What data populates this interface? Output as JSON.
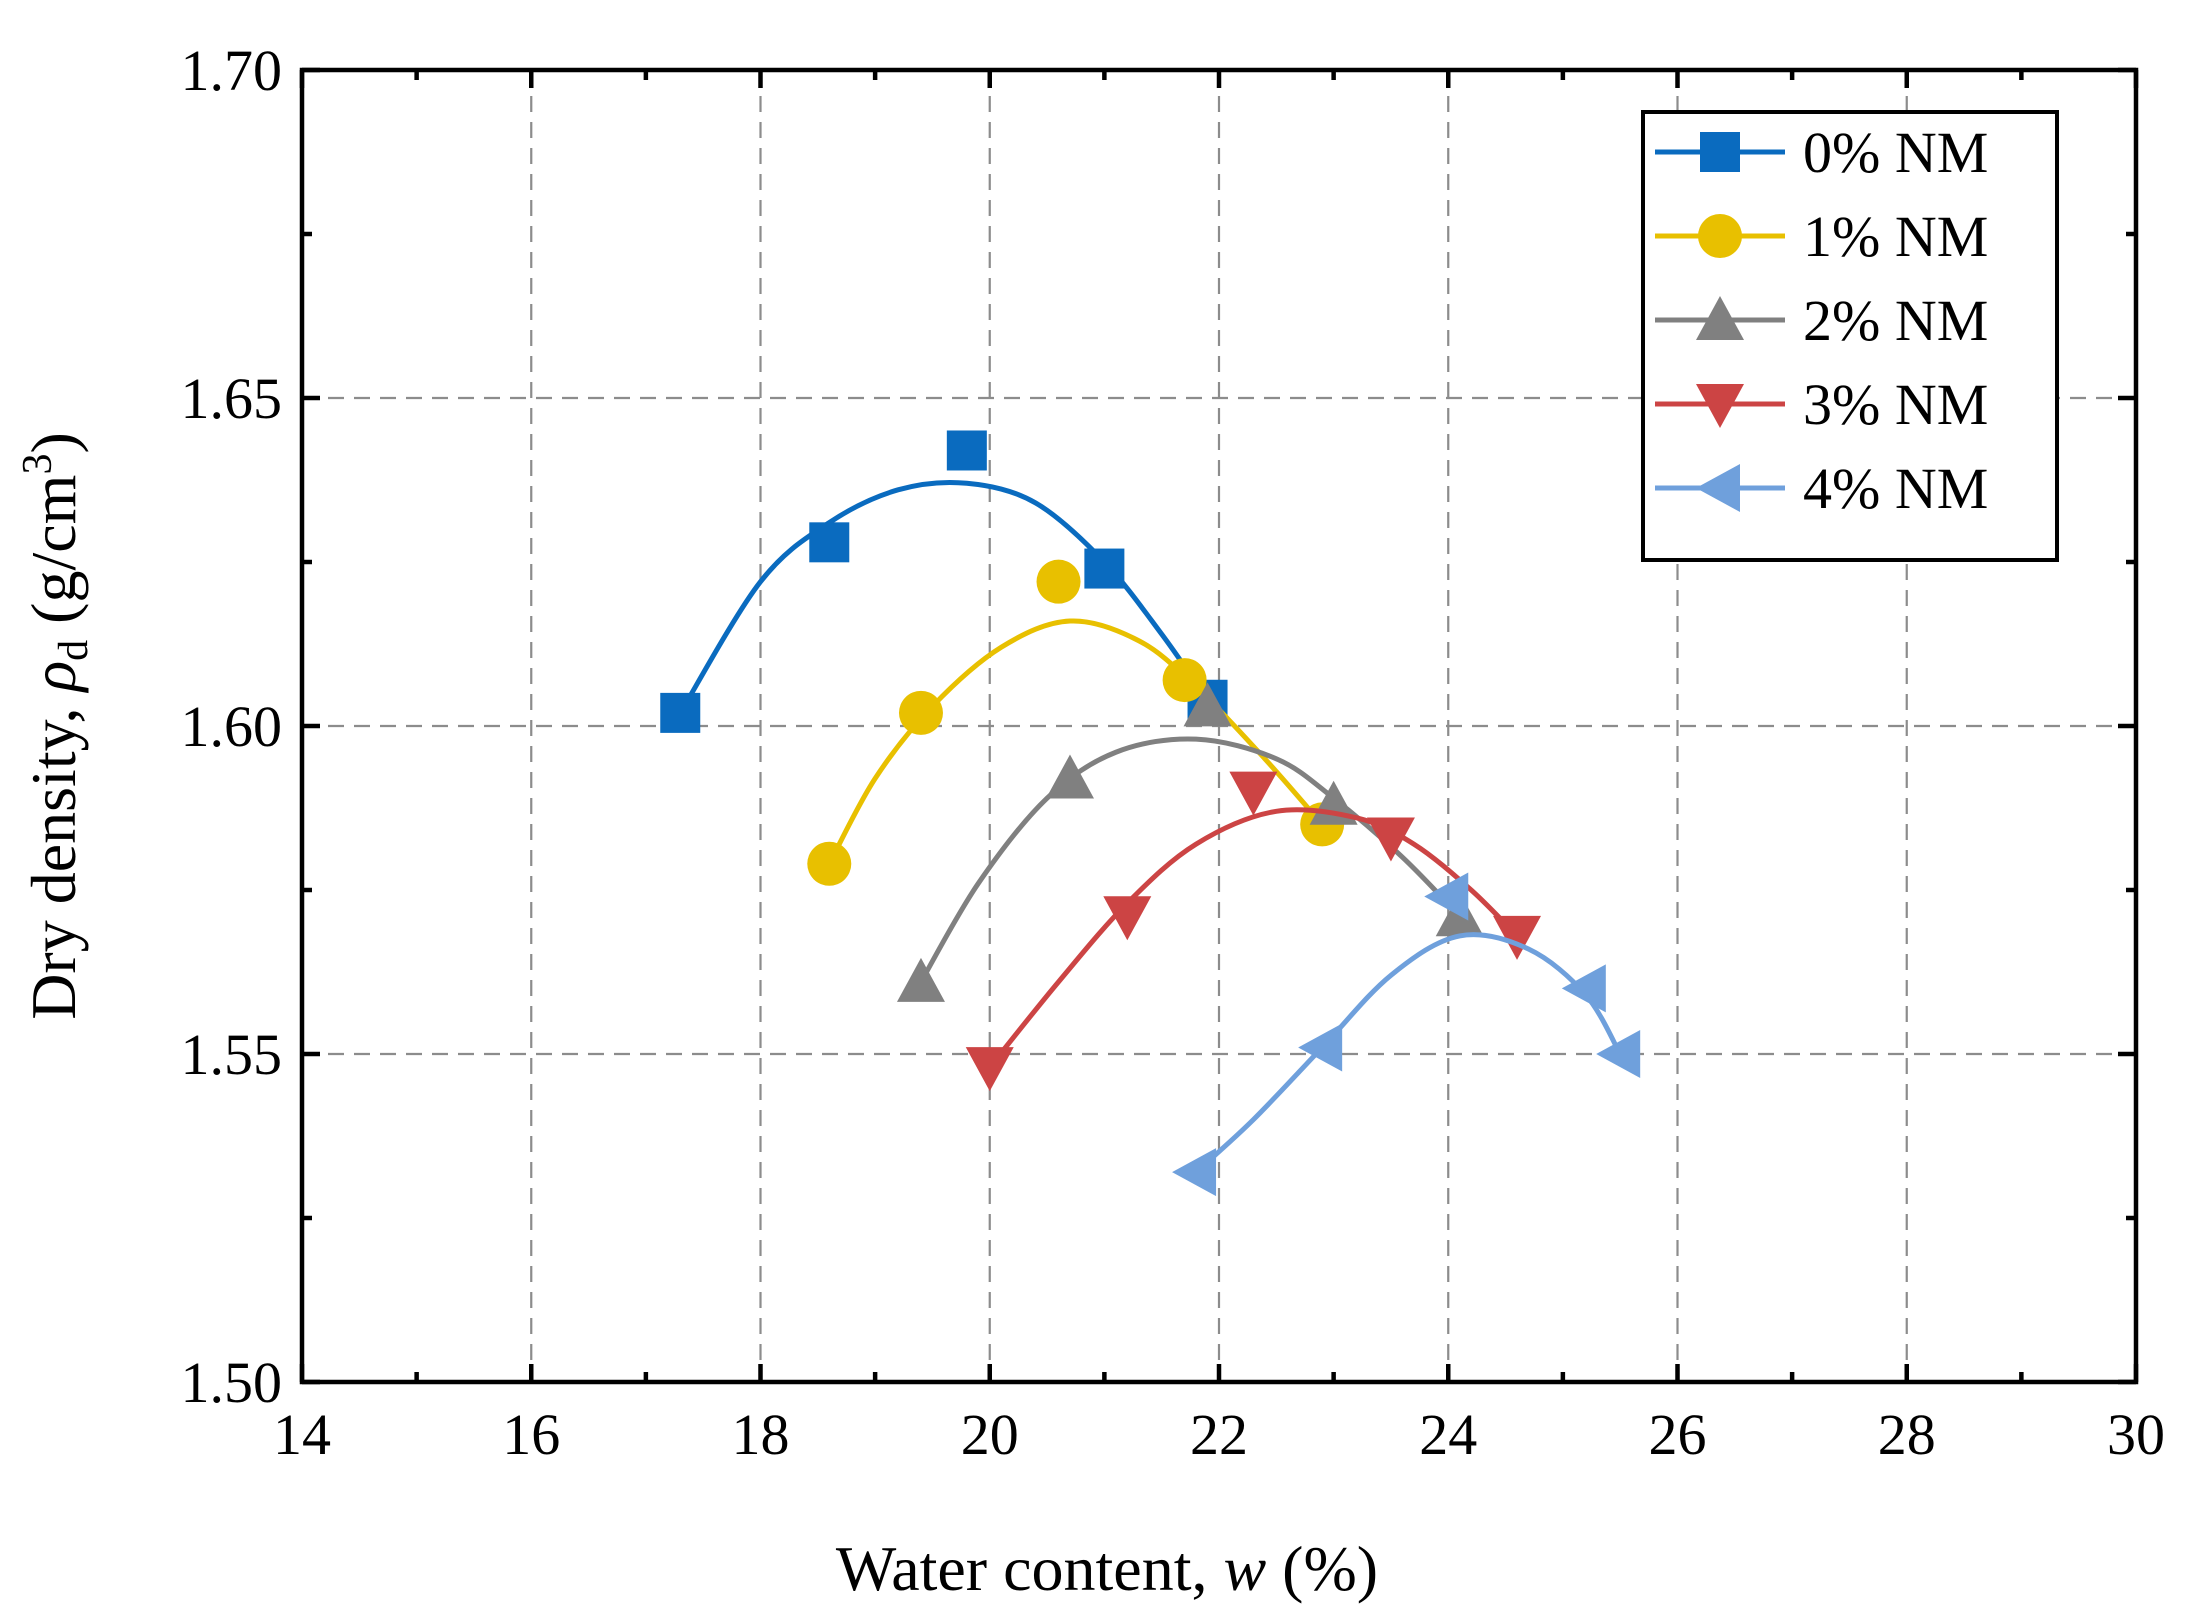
{
  "chart_data": {
    "type": "line",
    "title": "",
    "xlabel_prefix": "Water content, ",
    "xlabel_var": "w",
    "xlabel_suffix": " (%)",
    "ylabel_prefix": "Dry density, ",
    "ylabel_var": "ρ",
    "ylabel_sub": "d",
    "ylabel_units_open": "  (g/cm",
    "ylabel_sup": "3",
    "ylabel_units_close": ")",
    "xlim": [
      14,
      30
    ],
    "ylim": [
      1.5,
      1.7
    ],
    "x_major_ticks": [
      14,
      16,
      18,
      20,
      22,
      24,
      26,
      28,
      30
    ],
    "x_tick_labels": [
      "14",
      "16",
      "18",
      "20",
      "22",
      "24",
      "26",
      "28",
      "30"
    ],
    "x_minor_ticks": [
      15,
      17,
      19,
      21,
      23,
      25,
      27,
      29
    ],
    "y_major_ticks": [
      1.5,
      1.55,
      1.6,
      1.65,
      1.7
    ],
    "y_tick_labels": [
      "1.50",
      "1.55",
      "1.60",
      "1.65",
      "1.70"
    ],
    "y_minor_ticks": [
      1.525,
      1.575,
      1.625,
      1.675
    ],
    "grid": true,
    "legend_position": "top-right",
    "series": [
      {
        "name": "0% NM",
        "color": "#0a6bbf",
        "marker": "square",
        "points": [
          [
            17.3,
            1.602
          ],
          [
            18.6,
            1.628
          ],
          [
            19.8,
            1.642
          ],
          [
            21.0,
            1.624
          ],
          [
            21.9,
            1.604
          ]
        ],
        "fit": [
          [
            17.3,
            1.602
          ],
          [
            18.0,
            1.622
          ],
          [
            18.6,
            1.631
          ],
          [
            19.2,
            1.636
          ],
          [
            19.8,
            1.637
          ],
          [
            20.4,
            1.634
          ],
          [
            21.0,
            1.625
          ],
          [
            21.5,
            1.614
          ],
          [
            21.9,
            1.604
          ]
        ]
      },
      {
        "name": "1% NM",
        "color": "#e8c000",
        "marker": "circle",
        "points": [
          [
            18.6,
            1.579
          ],
          [
            19.4,
            1.602
          ],
          [
            20.6,
            1.622
          ],
          [
            21.7,
            1.607
          ],
          [
            22.9,
            1.585
          ]
        ],
        "fit": [
          [
            18.6,
            1.579
          ],
          [
            19.0,
            1.592
          ],
          [
            19.5,
            1.603
          ],
          [
            20.1,
            1.612
          ],
          [
            20.7,
            1.616
          ],
          [
            21.3,
            1.613
          ],
          [
            21.8,
            1.606
          ],
          [
            22.4,
            1.595
          ],
          [
            22.9,
            1.585
          ]
        ]
      },
      {
        "name": "2% NM",
        "color": "#808080",
        "marker": "triangle-up",
        "points": [
          [
            19.4,
            1.561
          ],
          [
            20.7,
            1.592
          ],
          [
            21.9,
            1.603
          ],
          [
            23.0,
            1.588
          ],
          [
            24.1,
            1.571
          ]
        ],
        "fit": [
          [
            19.4,
            1.561
          ],
          [
            19.9,
            1.576
          ],
          [
            20.5,
            1.589
          ],
          [
            21.1,
            1.596
          ],
          [
            21.8,
            1.598
          ],
          [
            22.5,
            1.595
          ],
          [
            23.0,
            1.589
          ],
          [
            23.6,
            1.58
          ],
          [
            24.1,
            1.571
          ]
        ]
      },
      {
        "name": "3% NM",
        "color": "#cc4444",
        "marker": "triangle-down",
        "points": [
          [
            20.0,
            1.548
          ],
          [
            21.2,
            1.571
          ],
          [
            22.3,
            1.59
          ],
          [
            23.5,
            1.583
          ],
          [
            24.6,
            1.568
          ]
        ],
        "fit": [
          [
            20.0,
            1.548
          ],
          [
            20.6,
            1.561
          ],
          [
            21.2,
            1.573
          ],
          [
            21.8,
            1.582
          ],
          [
            22.5,
            1.587
          ],
          [
            23.2,
            1.586
          ],
          [
            23.7,
            1.582
          ],
          [
            24.2,
            1.575
          ],
          [
            24.6,
            1.568
          ]
        ]
      },
      {
        "name": "4% NM",
        "color": "#6fa0dc",
        "marker": "triangle-left",
        "points": [
          [
            21.8,
            1.532
          ],
          [
            22.9,
            1.551
          ],
          [
            24.0,
            1.574
          ],
          [
            25.2,
            1.56
          ],
          [
            25.5,
            1.55
          ]
        ],
        "fit": [
          [
            21.8,
            1.532
          ],
          [
            22.3,
            1.54
          ],
          [
            22.9,
            1.551
          ],
          [
            23.5,
            1.562
          ],
          [
            24.1,
            1.568
          ],
          [
            24.7,
            1.566
          ],
          [
            25.2,
            1.559
          ],
          [
            25.5,
            1.55
          ]
        ]
      }
    ]
  }
}
